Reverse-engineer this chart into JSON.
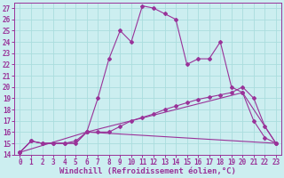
{
  "xlabel": "Windchill (Refroidissement éolien,°C)",
  "bg_color": "#cceef0",
  "grid_color": "#aadddd",
  "line_color": "#993399",
  "xlim": [
    -0.5,
    23.5
  ],
  "ylim": [
    14,
    27.5
  ],
  "xticks": [
    0,
    1,
    2,
    3,
    4,
    5,
    6,
    7,
    8,
    9,
    10,
    11,
    12,
    13,
    14,
    15,
    16,
    17,
    18,
    19,
    20,
    21,
    22,
    23
  ],
  "yticks": [
    14,
    15,
    16,
    17,
    18,
    19,
    20,
    21,
    22,
    23,
    24,
    25,
    26,
    27
  ],
  "series1_x": [
    0,
    1,
    2,
    3,
    4,
    5,
    6,
    7,
    8,
    9,
    10,
    11,
    12,
    13,
    14,
    15,
    16,
    17,
    18,
    19,
    20,
    21,
    22,
    23
  ],
  "series1_y": [
    14.2,
    15.2,
    15.0,
    15.0,
    15.0,
    15.0,
    16.0,
    19.0,
    22.5,
    25.0,
    24.0,
    27.2,
    27.0,
    26.5,
    26.0,
    22.0,
    22.5,
    22.5,
    24.0,
    20.0,
    19.5,
    17.0,
    15.5,
    15.0
  ],
  "series2_x": [
    0,
    1,
    2,
    3,
    4,
    5,
    6,
    7,
    8,
    9,
    10,
    11,
    12,
    13,
    14,
    15,
    16,
    17,
    18,
    19,
    20,
    21,
    22,
    23
  ],
  "series2_y": [
    14.2,
    15.2,
    15.0,
    15.0,
    15.0,
    15.2,
    16.0,
    16.0,
    16.0,
    16.5,
    17.0,
    17.3,
    17.6,
    18.0,
    18.3,
    18.6,
    18.9,
    19.1,
    19.3,
    19.5,
    20.0,
    19.0,
    16.5,
    15.0
  ],
  "series3_x": [
    0,
    6,
    20,
    23
  ],
  "series3_y": [
    14.2,
    16.0,
    19.5,
    15.0
  ],
  "series4_x": [
    0,
    1,
    2,
    3,
    4,
    5,
    6,
    23
  ],
  "series4_y": [
    14.2,
    15.2,
    15.0,
    15.0,
    15.0,
    15.0,
    16.0,
    15.0
  ],
  "fontsize_tick": 5.5,
  "fontsize_label": 6.5,
  "markersize": 2.0,
  "linewidth": 0.8
}
